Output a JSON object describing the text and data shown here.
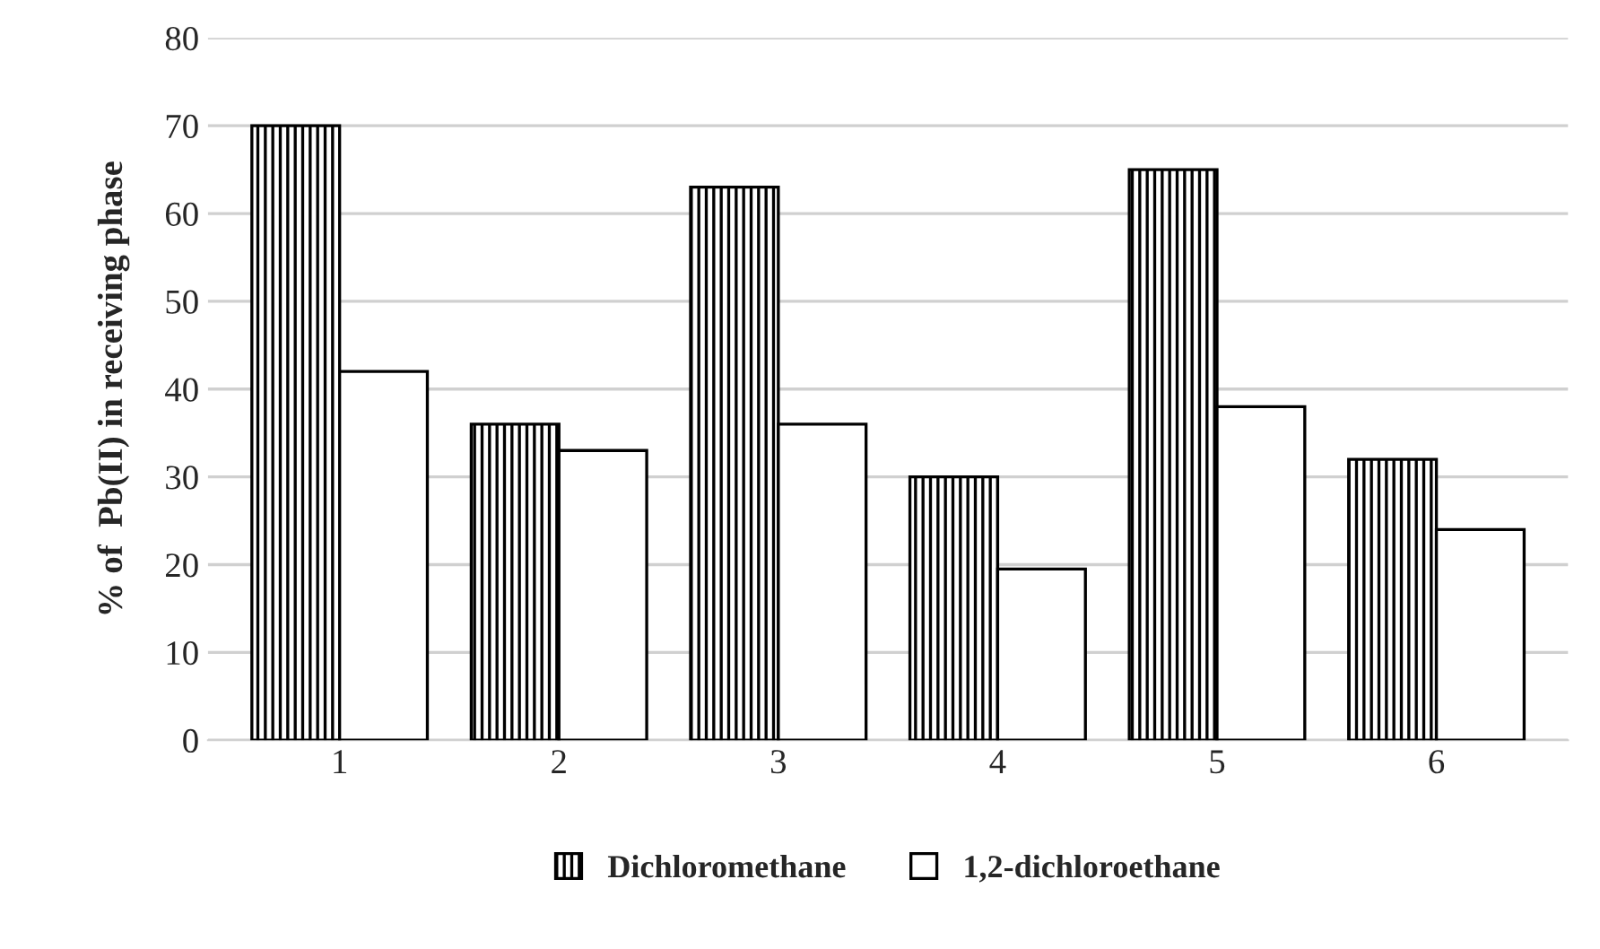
{
  "chart_data": {
    "type": "bar",
    "ylabel": "% of  Pb(II) in receiving phase",
    "categories": [
      "1",
      "2",
      "3",
      "4",
      "5",
      "6"
    ],
    "series": [
      {
        "name": "Dichloromethane",
        "color": "#000000",
        "values": [
          70,
          36,
          63,
          30,
          65,
          32
        ]
      },
      {
        "name": "1,2-dichloroethane",
        "color": "#ffffff",
        "values": [
          42,
          33,
          36,
          19.5,
          38,
          24
        ]
      }
    ],
    "ylim": [
      0,
      80
    ],
    "yticks": [
      0,
      10,
      20,
      30,
      40,
      50,
      60,
      70,
      80
    ],
    "grid": "y",
    "legend": "bottom"
  }
}
